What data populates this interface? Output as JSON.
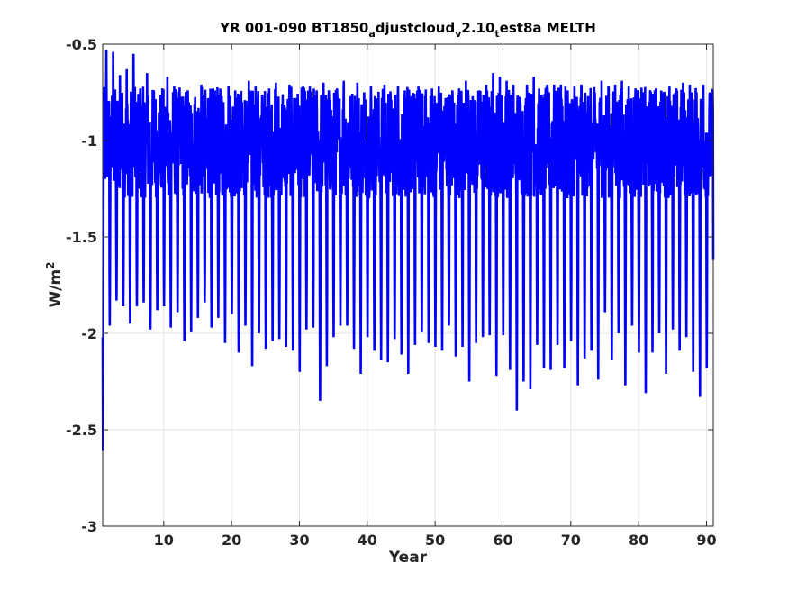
{
  "chart_data": {
    "type": "line",
    "title": {
      "p1": "YR 001-090 BT1850",
      "s1": "a",
      "p2": "djustcloud",
      "s2": "v",
      "p3": "2.10",
      "s3": "t",
      "p4": "est8a MELTH"
    },
    "xlabel": "Year",
    "ylabel": {
      "base": "W/m",
      "sup": "2"
    },
    "xlim": [
      1,
      91
    ],
    "ylim": [
      -3,
      -0.5
    ],
    "xticks": [
      10,
      20,
      30,
      40,
      50,
      60,
      70,
      80,
      90
    ],
    "xtick_labels": [
      "10",
      "20",
      "30",
      "40",
      "50",
      "60",
      "70",
      "80",
      "90"
    ],
    "yticks": [
      -3,
      -2.5,
      -2,
      -1.5,
      -1,
      -0.5
    ],
    "ytick_labels": [
      "-3",
      "-2.5",
      "-2",
      "-1.5",
      "-1",
      "-0.5"
    ],
    "grid": true,
    "series": [
      {
        "color": "#0000ff",
        "annual_min": [
          -2.61,
          -1.96,
          -1.83,
          -1.86,
          -1.95,
          -1.86,
          -1.84,
          -1.98,
          -1.88,
          -1.86,
          -1.97,
          -1.89,
          -2.04,
          -1.99,
          -1.92,
          -1.84,
          -1.97,
          -1.92,
          -2.05,
          -1.9,
          -2.1,
          -1.96,
          -2.17,
          -2.0,
          -2.08,
          -2.04,
          -2.03,
          -2.07,
          -2.09,
          -2.2,
          -1.98,
          -1.97,
          -2.35,
          -2.17,
          -2.02,
          -1.96,
          -1.96,
          -2.08,
          -2.21,
          -2.02,
          -2.09,
          -2.14,
          -2.15,
          -2.03,
          -2.11,
          -2.21,
          -2.06,
          -1.99,
          -2.05,
          -2.07,
          -2.09,
          -1.96,
          -2.12,
          -2.07,
          -2.25,
          -2.05,
          -2.02,
          -2.01,
          -2.22,
          -2.01,
          -2.19,
          -2.4,
          -2.25,
          -2.29,
          -2.06,
          -2.18,
          -2.19,
          -2.06,
          -2.18,
          -2.04,
          -2.27,
          -2.13,
          -2.09,
          -2.24,
          -1.89,
          -2.14,
          -2.0,
          -2.27,
          -1.96,
          -2.1,
          -2.31,
          -2.1,
          -2.0,
          -2.21,
          -1.98,
          -2.09,
          -2.02,
          -2.2,
          -2.33,
          -2.18
        ],
        "annual_max": [
          -0.53,
          -0.54,
          -0.66,
          -0.63,
          -0.55,
          -0.73,
          -0.65,
          -0.74,
          -0.77,
          -0.67,
          -0.72,
          -0.78,
          -0.74,
          -0.81,
          -0.71,
          -0.78,
          -0.74,
          -0.77,
          -0.72,
          -0.74,
          -0.8,
          -0.69,
          -0.72,
          -0.77,
          -0.73,
          -0.7,
          -0.76,
          -0.71,
          -0.78,
          -0.72,
          -0.72,
          -0.74,
          -0.7,
          -0.79,
          -0.73,
          -0.69,
          -0.77,
          -0.7,
          -0.75,
          -0.72,
          -0.81,
          -0.71,
          -0.79,
          -0.72,
          -0.74,
          -0.77,
          -0.72,
          -0.77,
          -0.73,
          -0.72,
          -0.78,
          -0.74,
          -0.73,
          -0.69,
          -0.77,
          -0.74,
          -0.71,
          -0.65,
          -0.67,
          -0.69,
          -0.71,
          -0.78,
          -0.71,
          -0.67,
          -0.77,
          -0.71,
          -0.71,
          -0.71,
          -0.74,
          -0.72,
          -0.71,
          -0.77,
          -0.75,
          -0.69,
          -0.72,
          -0.71,
          -0.69,
          -0.72,
          -0.73,
          -0.75,
          -0.8,
          -0.73,
          -0.75,
          -0.72,
          -0.73,
          -0.7,
          -0.71,
          -0.75,
          -0.71,
          -0.76
        ],
        "typical_band": [
          -1.3,
          -0.72
        ]
      }
    ]
  }
}
